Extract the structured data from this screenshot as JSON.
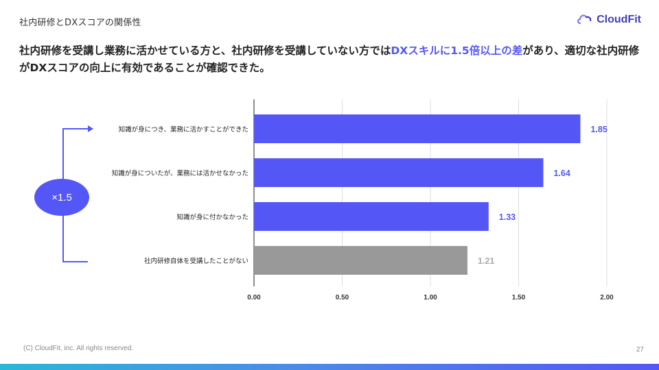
{
  "slide": {
    "title": "社内研修とDXスコアの関係性",
    "logo_text": "CloudFit",
    "headline_part1": "社内研修を受講し業務に活かせている方と、社内研修を受講していない方では",
    "headline_highlight": "DXスキルに1.5倍以上の差",
    "headline_part2": "があり、適切な社内研修がDXスコアの向上に有効であることが確認できた。",
    "annotation": "×1.5",
    "footer": "(C) CloudFit, inc. All rights reserved.",
    "page_number": "27"
  },
  "colors": {
    "accent": "#5457f5",
    "bar_primary": "#5457f5",
    "bar_gray": "#999999",
    "label_gray": "#aaaaaa"
  },
  "chart_data": {
    "type": "bar",
    "orientation": "horizontal",
    "categories": [
      "知識が身につき、業務に活かすことができた",
      "知識が身についたが、業務には活かせなかった",
      "知識が身に付かなかった",
      "社内研修自体を受講したことがない"
    ],
    "values": [
      1.85,
      1.64,
      1.33,
      1.21
    ],
    "value_labels": [
      "1.85",
      "1.64",
      "1.33",
      "1.21"
    ],
    "bar_colors": [
      "#5457f5",
      "#5457f5",
      "#5457f5",
      "#999999"
    ],
    "xlim": [
      0,
      2.0
    ],
    "xticks": [
      0,
      0.5,
      1.0,
      1.5,
      2.0
    ],
    "xtick_labels": [
      "0.00",
      "0.50",
      "1.00",
      "1.50",
      "2.00"
    ],
    "grid": true
  }
}
